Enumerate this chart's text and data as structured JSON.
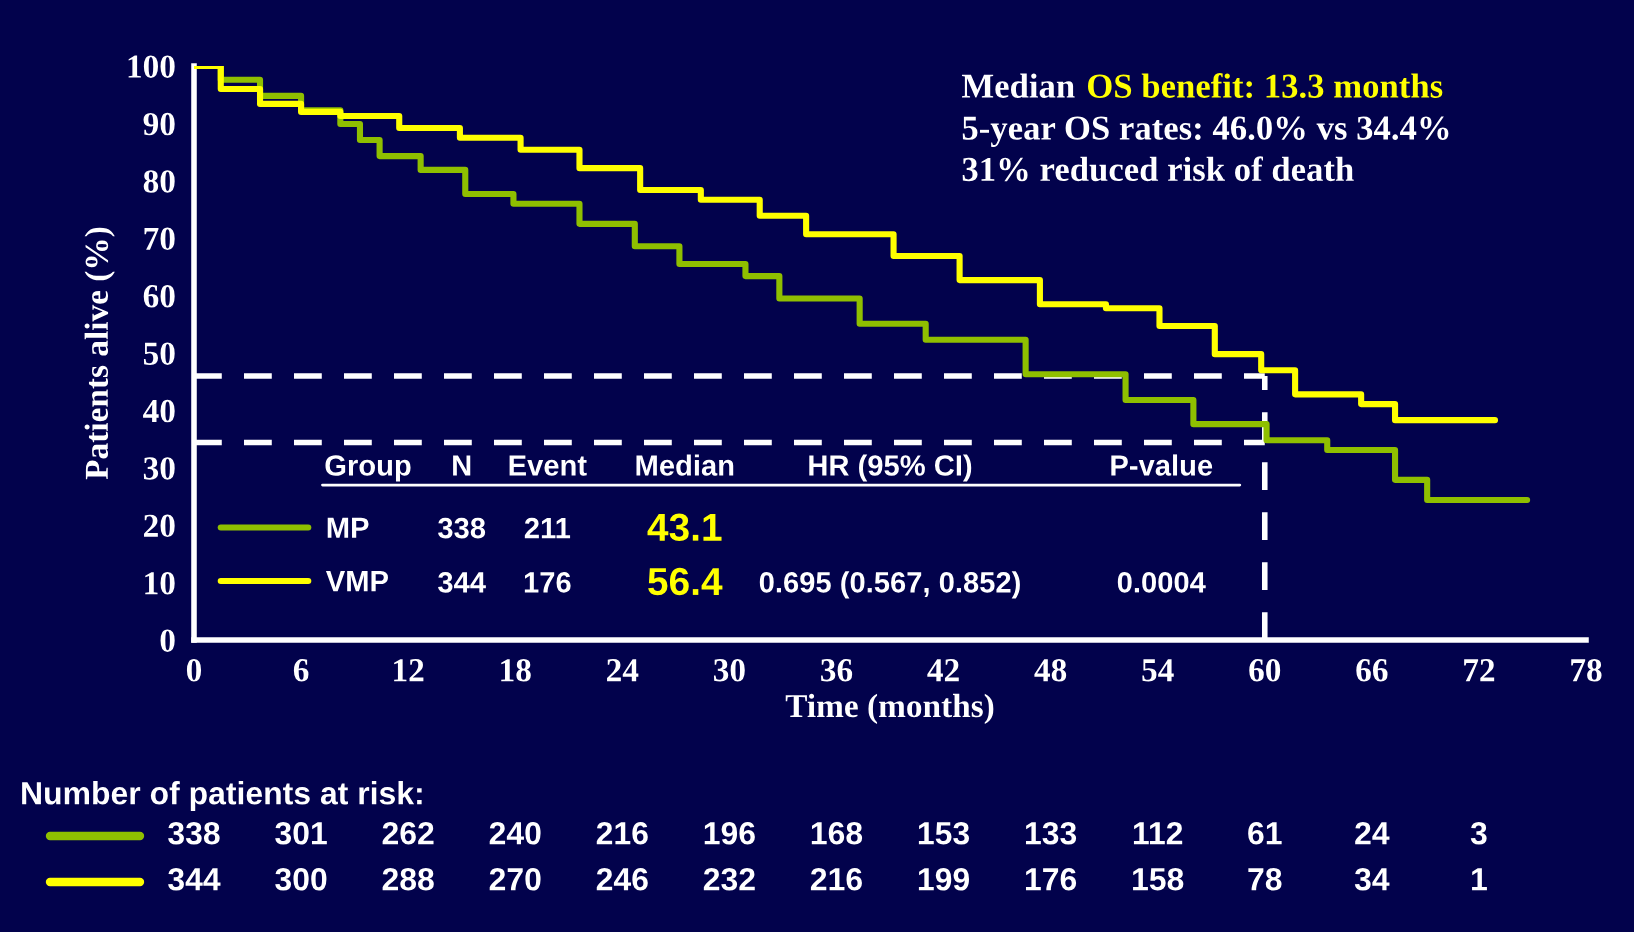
{
  "chart_data": {
    "type": "step",
    "xlabel": "Time (months)",
    "ylabel": "Patients alive (%)",
    "xlim": [
      0,
      78
    ],
    "xticks": [
      0,
      6,
      12,
      18,
      24,
      30,
      36,
      42,
      48,
      54,
      60,
      66,
      72,
      78
    ],
    "ylim": [
      0,
      100
    ],
    "yticks": [
      0,
      10,
      20,
      30,
      40,
      50,
      60,
      70,
      80,
      90,
      100
    ],
    "grid": false,
    "legend": "bottom left",
    "series": [
      {
        "name": "MP",
        "color": "#8fbf00",
        "x": [
          0,
          1.5,
          3.7,
          6,
          8.2,
          9.3,
          10.4,
          12.7,
          15.2,
          17.9,
          21.6,
          24.7,
          27.2,
          30.9,
          32.8,
          37.3,
          41.0,
          46.6,
          52.2,
          56.0,
          60.1,
          63.5,
          67.3,
          69.1,
          74.7
        ],
        "values": [
          100,
          97.6,
          94.8,
          92.3,
          89.9,
          87.1,
          84.3,
          81.9,
          77.7,
          76,
          72.5,
          68.6,
          65.5,
          63.4,
          59.5,
          55.1,
          52.3,
          46.3,
          41.8,
          37.6,
          34.8,
          33.1,
          27.9,
          24.4,
          24.4
        ]
      },
      {
        "name": "VMP",
        "color": "#ffff00",
        "x": [
          0,
          1.5,
          3.7,
          6,
          8.2,
          11.5,
          14.9,
          18.3,
          21.6,
          25,
          28.4,
          31.7,
          34.3,
          39.2,
          42.9,
          47.4,
          51.1,
          54.1,
          57.2,
          59.8,
          61.7,
          65.4,
          67.3,
          72.9
        ],
        "values": [
          100,
          96,
          93.4,
          92,
          91.3,
          89.2,
          87.5,
          85.4,
          82.2,
          78.4,
          76.7,
          73.9,
          70.7,
          66.9,
          62.7,
          58.5,
          57.8,
          54.7,
          49.8,
          47.0,
          42.8,
          41.1,
          38.3,
          38.3
        ]
      }
    ],
    "ref_lines": [
      {
        "axis": "y",
        "value": 46.0,
        "color": "#ffffff",
        "line_style": "dashed"
      },
      {
        "axis": "y",
        "value": 34.4,
        "color": "#ffffff",
        "line_style": "dashed"
      },
      {
        "axis": "x",
        "value": 60,
        "color": "#ffffff",
        "line_style": "dashed"
      }
    ],
    "annotations": [
      "Median",
      "OS benefit: 13.3 months",
      "5-year OS rates: 46.0% vs 34.4%",
      "31% reduced risk of death",
      "Group",
      "N",
      "Event",
      "Median",
      "HR (95% CI)",
      "P-value",
      "338",
      "211",
      "43.1",
      "344",
      "176",
      "56.4",
      "0.695 (0.567, 0.852)",
      "0.0004",
      "Number of patients at risk:",
      "338",
      "301",
      "262",
      "240",
      "216",
      "196",
      "168",
      "153",
      "133",
      "112",
      "61",
      "24",
      "3",
      "344",
      "300",
      "288",
      "270",
      "246",
      "232",
      "216",
      "199",
      "176",
      "158",
      "78",
      "34",
      "1"
    ]
  }
}
